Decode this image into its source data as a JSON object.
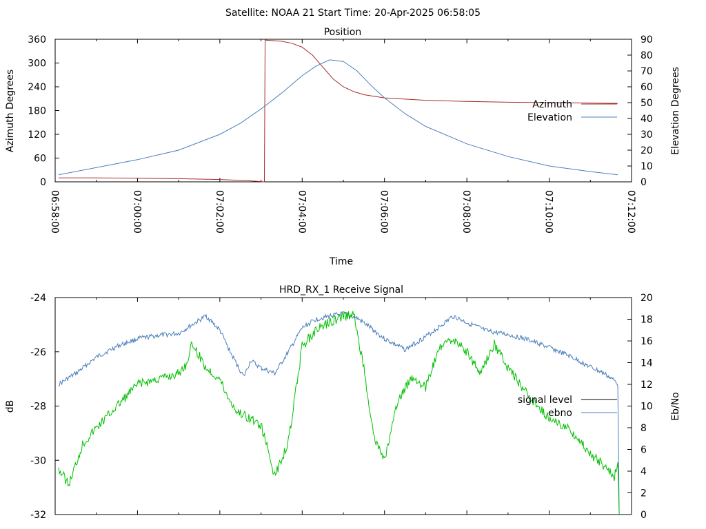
{
  "figure_title": "Satellite: NOAA 21    Start Time: 20-Apr-2025 06:58:05",
  "colors": {
    "azimuth": "#a52a2a",
    "elevation": "#4a7ebb",
    "signal_level": "#00c000",
    "ebno": "#4a7ebb",
    "legend_signal_level": "#000000"
  },
  "chart_data": [
    {
      "type": "line",
      "title": "Position",
      "xlabel": "Time",
      "ylabel": "Azimuth Degrees",
      "y2label": "Elevation Degrees",
      "xlim": [
        "06:58:00",
        "07:12:00"
      ],
      "ylim": [
        0,
        360
      ],
      "y2lim": [
        0,
        90
      ],
      "xticks": [
        "06:58:00",
        "07:00:00",
        "07:02:00",
        "07:04:00",
        "07:06:00",
        "07:08:00",
        "07:10:00",
        "07:12:00"
      ],
      "yticks": [
        "0",
        "60",
        "120",
        "180",
        "240",
        "300",
        "360"
      ],
      "y2ticks": [
        "0",
        "10",
        "20",
        "30",
        "40",
        "50",
        "60",
        "70",
        "80",
        "90"
      ],
      "legend_position": "right",
      "series": [
        {
          "name": "Azimuth",
          "axis": "y",
          "x": [
            "06:58:05",
            "06:59:00",
            "07:00:00",
            "07:01:00",
            "07:02:00",
            "07:02:40",
            "07:03:05",
            "07:03:06",
            "07:03:30",
            "07:03:45",
            "07:04:00",
            "07:04:15",
            "07:04:30",
            "07:04:45",
            "07:05:00",
            "07:05:15",
            "07:05:30",
            "07:06:00",
            "07:07:00",
            "07:08:00",
            "07:09:00",
            "07:10:00",
            "07:11:00",
            "07:11:40"
          ],
          "values": [
            10,
            10,
            9,
            8,
            6,
            3,
            0,
            358,
            355,
            350,
            340,
            320,
            290,
            260,
            240,
            228,
            220,
            212,
            206,
            203,
            201,
            200,
            199,
            198
          ]
        },
        {
          "name": "Elevation",
          "axis": "y2",
          "x": [
            "06:58:05",
            "06:59:00",
            "07:00:00",
            "07:01:00",
            "07:02:00",
            "07:02:30",
            "07:03:00",
            "07:03:30",
            "07:04:00",
            "07:04:20",
            "07:04:40",
            "07:05:00",
            "07:05:20",
            "07:05:40",
            "07:06:00",
            "07:06:30",
            "07:07:00",
            "07:08:00",
            "07:09:00",
            "07:10:00",
            "07:11:00",
            "07:11:40"
          ],
          "values": [
            4.5,
            9,
            14,
            20,
            30,
            37,
            46,
            56,
            67,
            73,
            77,
            76,
            70,
            61,
            53,
            43,
            35,
            24,
            16,
            10,
            6.5,
            4.5
          ]
        }
      ]
    },
    {
      "type": "line",
      "title": "HRD_RX_1 Receive Signal",
      "xlabel": "",
      "ylabel": "dB",
      "y2label": "Eb/No",
      "xlim": [
        "06:58:00",
        "07:12:00"
      ],
      "ylim": [
        -32,
        -24
      ],
      "y2lim": [
        0,
        20
      ],
      "yticks": [
        "-32",
        "-30",
        "-28",
        "-26",
        "-24"
      ],
      "y2ticks": [
        "0",
        "2",
        "4",
        "6",
        "8",
        "10",
        "12",
        "14",
        "16",
        "18",
        "20"
      ],
      "legend_position": "right",
      "series": [
        {
          "name": "signal level",
          "axis": "y",
          "x": [
            "06:58:05",
            "06:58:20",
            "06:58:40",
            "06:59:00",
            "06:59:30",
            "07:00:00",
            "07:00:30",
            "07:01:00",
            "07:01:10",
            "07:01:20",
            "07:01:40",
            "07:02:00",
            "07:02:10",
            "07:02:25",
            "07:02:40",
            "07:03:00",
            "07:03:10",
            "07:03:20",
            "07:03:40",
            "07:04:00",
            "07:04:20",
            "07:04:40",
            "07:05:00",
            "07:05:15",
            "07:05:30",
            "07:05:45",
            "07:06:00",
            "07:06:20",
            "07:06:40",
            "07:07:00",
            "07:07:20",
            "07:07:40",
            "07:08:00",
            "07:08:20",
            "07:08:40",
            "07:09:00",
            "07:09:20",
            "07:09:40",
            "07:10:00",
            "07:10:20",
            "07:10:40",
            "07:11:00",
            "07:11:20",
            "07:11:35",
            "07:11:40",
            "07:11:42"
          ],
          "values": [
            -30.3,
            -30.9,
            -29.4,
            -28.8,
            -28.0,
            -27.2,
            -27.0,
            -26.8,
            -26.5,
            -25.7,
            -26.6,
            -27.0,
            -27.6,
            -28.2,
            -28.4,
            -28.7,
            -29.6,
            -30.6,
            -29.3,
            -25.8,
            -25.2,
            -24.9,
            -24.7,
            -24.6,
            -26.6,
            -29.2,
            -30.0,
            -27.8,
            -26.9,
            -27.3,
            -25.9,
            -25.5,
            -26.0,
            -26.8,
            -25.7,
            -26.6,
            -27.3,
            -27.9,
            -28.5,
            -28.7,
            -29.1,
            -29.8,
            -30.2,
            -30.6,
            -30.1,
            -32.0
          ]
        },
        {
          "name": "ebno",
          "axis": "y2",
          "x": [
            "06:58:05",
            "06:58:30",
            "06:59:00",
            "06:59:30",
            "07:00:00",
            "07:00:30",
            "07:01:00",
            "07:01:20",
            "07:01:40",
            "07:02:00",
            "07:02:15",
            "07:02:25",
            "07:02:35",
            "07:02:45",
            "07:03:00",
            "07:03:20",
            "07:03:40",
            "07:04:00",
            "07:04:20",
            "07:04:40",
            "07:05:00",
            "07:05:20",
            "07:05:40",
            "07:06:00",
            "07:06:30",
            "07:07:00",
            "07:07:20",
            "07:07:40",
            "07:08:00",
            "07:08:30",
            "07:09:00",
            "07:09:30",
            "07:10:00",
            "07:10:30",
            "07:11:00",
            "07:11:20",
            "07:11:38",
            "07:11:40",
            "07:11:42"
          ],
          "values": [
            12.0,
            13.0,
            14.5,
            15.5,
            16.2,
            16.5,
            16.7,
            17.5,
            18.3,
            17.0,
            15.0,
            13.8,
            12.7,
            14.2,
            13.5,
            13.0,
            15.0,
            17.2,
            18.0,
            18.3,
            18.5,
            18.1,
            17.2,
            16.2,
            15.2,
            16.4,
            17.3,
            18.3,
            17.7,
            16.9,
            16.6,
            16.1,
            15.4,
            14.6,
            13.6,
            13.0,
            12.2,
            12.0,
            0.0
          ]
        }
      ]
    }
  ]
}
